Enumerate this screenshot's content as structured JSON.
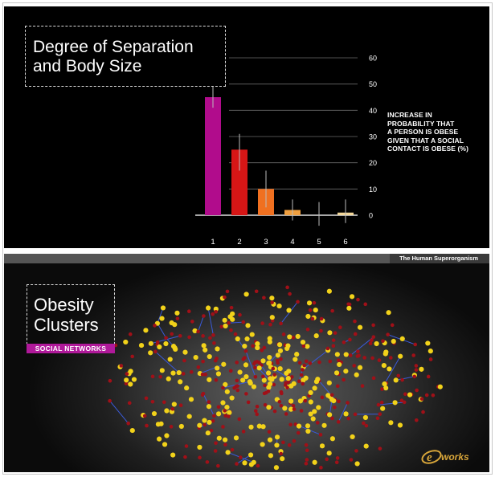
{
  "top_panel": {
    "title_line1": "Degree of Separation",
    "title_line2": "and Body Size",
    "ylabel_lines": [
      "INCREASE IN",
      "PROBABILITY THAT",
      "A PERSON IS OBESE",
      "GIVEN THAT A SOCIAL",
      "CONTACT IS OBESE (%)"
    ]
  },
  "chart_data": {
    "type": "bar",
    "title": "Degree of Separation and Body Size",
    "xlabel": "",
    "ylabel": "INCREASE IN PROBABILITY THAT A PERSON IS OBESE GIVEN THAT A SOCIAL CONTACT IS OBESE (%)",
    "categories": [
      "1",
      "2",
      "3",
      "4",
      "5",
      "6"
    ],
    "values": [
      45,
      25,
      10,
      2,
      0,
      1
    ],
    "error_bars": [
      [
        41,
        49
      ],
      [
        17,
        31
      ],
      [
        3,
        17
      ],
      [
        -2,
        6
      ],
      [
        -4,
        5
      ],
      [
        -3,
        6
      ]
    ],
    "colors": [
      "#b10c8c",
      "#d61616",
      "#f07020",
      "#f0a040",
      "#f0c070",
      "#f3d79a"
    ],
    "ylim": [
      0,
      60
    ],
    "yticks": [
      0,
      10,
      20,
      30,
      40,
      50,
      60
    ],
    "grid": true,
    "y_axis_side": "right"
  },
  "bottom_panel": {
    "banner_text": "The Human Superorganism",
    "title_line1": "Obesity",
    "title_line2": "Clusters",
    "tag": "SOCIAL NETWORKS",
    "node_colors": {
      "obese": "#f2d21a",
      "non_obese": "#a01018",
      "edge": "#3a5ad8"
    }
  },
  "watermark": {
    "text": "works",
    "letter": "e"
  }
}
